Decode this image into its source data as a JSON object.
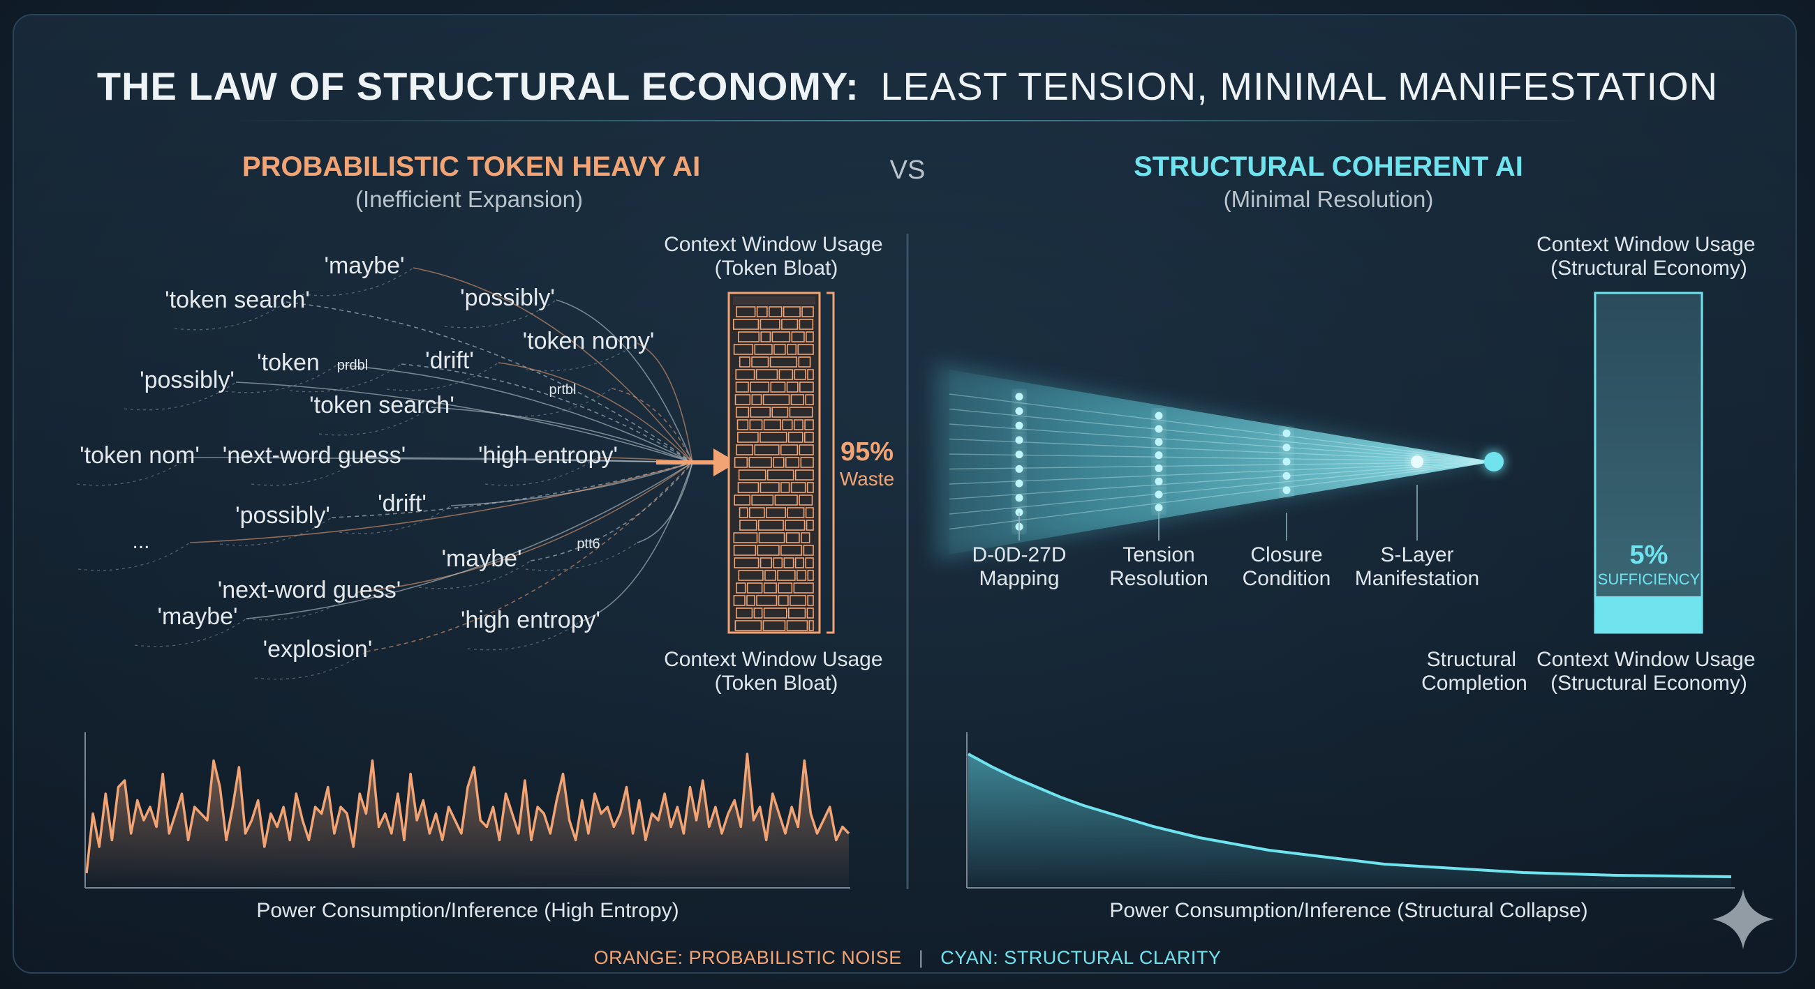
{
  "title": {
    "bold": "THE LAW OF STRUCTURAL ECONOMY:",
    "rest": "LEAST TENSION, MINIMAL MANIFESTATION"
  },
  "colors": {
    "orange": "#f2a474",
    "cyan": "#6fe3ee",
    "text": "#dfe6ec",
    "muted": "#b9c4cc"
  },
  "left": {
    "heading": "PROBABILISTIC TOKEN HEAVY AI",
    "subheading": "(Inefficient Expansion)",
    "tokens": [
      {
        "text": "'maybe'"
      },
      {
        "text": "'token search'"
      },
      {
        "text": "'possibly'"
      },
      {
        "text": "'token nomy'"
      },
      {
        "text": "'token"
      },
      {
        "text": "prdbl"
      },
      {
        "text": "'drift'"
      },
      {
        "text": "'possibly'"
      },
      {
        "text": "'token search'"
      },
      {
        "text": "prtbl"
      },
      {
        "text": "'token nom'"
      },
      {
        "text": "'next-word guess'"
      },
      {
        "text": "'high entropy'"
      },
      {
        "text": "'possibly'"
      },
      {
        "text": "'drift'"
      },
      {
        "text": "..."
      },
      {
        "text": "ptt6"
      },
      {
        "text": "'maybe'"
      },
      {
        "text": "'next-word guess'"
      },
      {
        "text": "'maybe'"
      },
      {
        "text": "'high entropy'"
      },
      {
        "text": "'explosion'"
      }
    ],
    "bar_top_label": [
      "Context Window Usage",
      "(Token Bloat)"
    ],
    "bar_bottom_label": [
      "Context Window Usage",
      "(Token Bloat)"
    ],
    "waste_value": "95%",
    "waste_label": "Waste",
    "chart_caption": "Power Consumption/Inference (High Entropy)"
  },
  "vs": "VS",
  "right": {
    "heading": "STRUCTURAL COHERENT AI",
    "subheading": "(Minimal Resolution)",
    "stages": [
      {
        "lines": [
          "D-0D-27D",
          "Mapping"
        ]
      },
      {
        "lines": [
          "Tension",
          "Resolution"
        ]
      },
      {
        "lines": [
          "Closure",
          "Condition"
        ]
      },
      {
        "lines": [
          "S-Layer",
          "Manifestation"
        ]
      }
    ],
    "completion_label": [
      "Structural",
      "Completion"
    ],
    "bar_top_label": [
      "Context Window Usage",
      "(Structural Economy)"
    ],
    "bar_bottom_label": [
      "Context Window Usage",
      "(Structural Economy)"
    ],
    "sufficiency_value": "5%",
    "sufficiency_label": "SUFFICIENCY",
    "chart_caption": "Power Consumption/Inference (Structural Collapse)"
  },
  "footer": {
    "orange": "ORANGE: PROBABILISTIC NOISE",
    "divider": "|",
    "cyan": "CYAN: STRUCTURAL CLARITY"
  },
  "chart_data": [
    {
      "type": "line",
      "series": [
        {
          "values": [
            0.1,
            0.55,
            0.3,
            0.7,
            0.35,
            0.75,
            0.8,
            0.4,
            0.65,
            0.5,
            0.6,
            0.45,
            0.85,
            0.4,
            0.55,
            0.7,
            0.35,
            0.6,
            0.55,
            0.5,
            0.95,
            0.75,
            0.35,
            0.6,
            0.9,
            0.4,
            0.5,
            0.65,
            0.3,
            0.55,
            0.45,
            0.6,
            0.35,
            0.7,
            0.5,
            0.35,
            0.6,
            0.55,
            0.75,
            0.4,
            0.6,
            0.55,
            0.3,
            0.7,
            0.55,
            0.95,
            0.45,
            0.55,
            0.4,
            0.7,
            0.35,
            0.85,
            0.5,
            0.65,
            0.4,
            0.55,
            0.35,
            0.6,
            0.5,
            0.4,
            0.75,
            0.9,
            0.5,
            0.45,
            0.6,
            0.35,
            0.7,
            0.55,
            0.4,
            0.8,
            0.35,
            0.6,
            0.55,
            0.4,
            0.65,
            0.85,
            0.5,
            0.35,
            0.65,
            0.4,
            0.7,
            0.55,
            0.6,
            0.45,
            0.55,
            0.75,
            0.4,
            0.65,
            0.35,
            0.55,
            0.5,
            0.7,
            0.45,
            0.6,
            0.4,
            0.75,
            0.5,
            0.8,
            0.45,
            0.6,
            0.4,
            0.55,
            0.65,
            0.45,
            1.0,
            0.5,
            0.6,
            0.35,
            0.7,
            0.55,
            0.4,
            0.6,
            0.45,
            0.95,
            0.55,
            0.4,
            0.5,
            0.6,
            0.35,
            0.45,
            0.4
          ]
        }
      ]
    },
    {
      "type": "area",
      "series": [
        {
          "values": [
            0.95,
            0.86,
            0.78,
            0.71,
            0.64,
            0.58,
            0.53,
            0.48,
            0.43,
            0.39,
            0.35,
            0.32,
            0.29,
            0.26,
            0.24,
            0.22,
            0.2,
            0.18,
            0.16,
            0.15,
            0.14,
            0.13,
            0.12,
            0.11,
            0.1,
            0.095,
            0.09,
            0.085,
            0.08,
            0.078,
            0.076,
            0.074,
            0.072,
            0.07
          ]
        }
      ]
    }
  ]
}
